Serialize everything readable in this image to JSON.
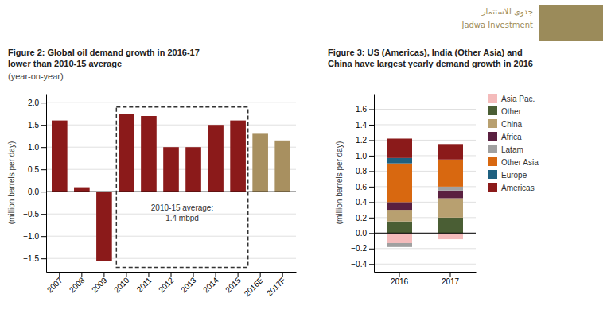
{
  "chart_data": [
    {
      "type": "bar",
      "title": "Figure 2: Global oil demand growth in 2016-17\nlower than 2010-15 average",
      "subtitle": "(year-on-year)",
      "y_label": "(million barrels per day)",
      "categories": [
        "2007",
        "2008",
        "2009",
        "2010",
        "2011",
        "2012",
        "2013",
        "2014",
        "2015",
        "2016E",
        "2017F"
      ],
      "values": [
        1.6,
        0.1,
        -1.55,
        1.75,
        1.7,
        1.0,
        1.0,
        1.5,
        1.6,
        1.3,
        1.15
      ],
      "colors": [
        "#8B1A1A",
        "#8B1A1A",
        "#8B1A1A",
        "#8B1A1A",
        "#8B1A1A",
        "#8B1A1A",
        "#8B1A1A",
        "#8B1A1A",
        "#8B1A1A",
        "#A89060",
        "#A89060"
      ],
      "ylim": [
        -1.8,
        2.2
      ],
      "yticks": [
        {
          "value": -1.5,
          "label": "−1.5"
        },
        {
          "value": -1.0,
          "label": "−1.0"
        },
        {
          "value": -0.5,
          "label": "−0.5"
        },
        {
          "value": 0,
          "label": "0.0"
        },
        {
          "value": 0.5,
          "label": "0.5"
        },
        {
          "value": 1.0,
          "label": "1.0"
        },
        {
          "value": 1.5,
          "label": "1.5"
        },
        {
          "value": 2.0,
          "label": "2.0"
        }
      ],
      "grid": true,
      "annotations": [
        {
          "text": "2010-15 average:\n1.4 mbpd",
          "x": [
            "2010",
            "2015"
          ],
          "y": [
            -1.7,
            1.9
          ]
        }
      ]
    },
    {
      "type": "bar",
      "stacked": true,
      "title": "Figure 3: US (Americas), India (Other Asia) and\nChina have largest yearly demand growth in 2016",
      "y_label": "(million barrels per day)",
      "categories": [
        "2016",
        "2017"
      ],
      "series": [
        {
          "name": "Asia Pac.",
          "color": "#F4BBBB",
          "values": [
            -0.13,
            -0.08
          ]
        },
        {
          "name": "Other",
          "color": "#4A5E34",
          "values": [
            0.15,
            0.2
          ]
        },
        {
          "name": "China",
          "color": "#B8A070",
          "values": [
            0.15,
            0.25
          ]
        },
        {
          "name": "Africa",
          "color": "#5A2040",
          "values": [
            0.1,
            0.1
          ]
        },
        {
          "name": "Latam",
          "color": "#A0A0A0",
          "values": [
            -0.05,
            0.05
          ]
        },
        {
          "name": "Other Asia",
          "color": "#D86810",
          "values": [
            0.5,
            0.35
          ]
        },
        {
          "name": "Europe",
          "color": "#1E6080",
          "values": [
            0.07,
            0.0
          ]
        },
        {
          "name": "Americas",
          "color": "#8B1A1A",
          "values": [
            0.25,
            0.2
          ]
        }
      ],
      "ylim": [
        -0.5,
        1.8
      ],
      "yticks": [
        {
          "value": -0.4,
          "label": "−0.4"
        },
        {
          "value": -0.2,
          "label": "−0.2"
        },
        {
          "value": 0.0,
          "label": "0.0"
        },
        {
          "value": 0.2,
          "label": "0.2"
        },
        {
          "value": 0.4,
          "label": "0.4"
        },
        {
          "value": 0.6,
          "label": "0.6"
        },
        {
          "value": 0.8,
          "label": "0.8"
        },
        {
          "value": 1.0,
          "label": "1.0"
        },
        {
          "value": 1.2,
          "label": "1.2"
        },
        {
          "value": 1.4,
          "label": "1.4"
        },
        {
          "value": 1.6,
          "label": "1.6"
        }
      ],
      "grid": true,
      "legend": "right",
      "annotations": [
        {
          "text": "جدوى للاستثمار",
          "color": "#9B8B5A"
        },
        {
          "text": "Jadwa Investment",
          "color": "#9B8B5A"
        }
      ]
    }
  ]
}
